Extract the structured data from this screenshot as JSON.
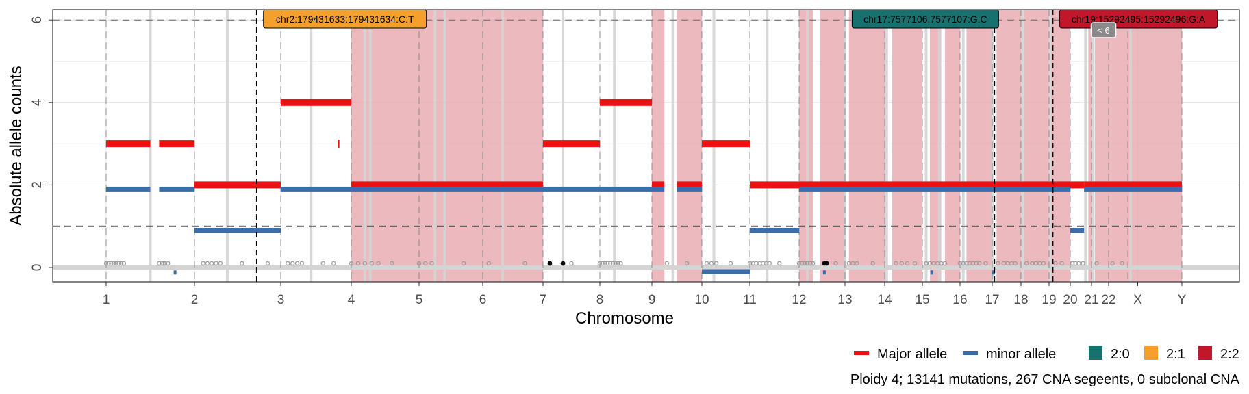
{
  "chart_data": {
    "type": "scatter",
    "title": "",
    "xlabel": "Chromosome",
    "ylabel": "Absolute allele counts",
    "x_tick_labels": [
      "1",
      "2",
      "3",
      "4",
      "5",
      "6",
      "7",
      "8",
      "9",
      "10",
      "11",
      "12",
      "13",
      "14",
      "15",
      "16",
      "17",
      "18",
      "19",
      "20",
      "21",
      "22",
      "X",
      "Y"
    ],
    "y_ticks": [
      0,
      2,
      4,
      6
    ],
    "ylim": [
      -0.35,
      6.3
    ],
    "grid": true,
    "legend_position": "bottom-right",
    "colors": {
      "major": "#ee1111",
      "minor": "#3b6ea8",
      "shade": "#e8aab0",
      "karyo_2_0": "#16716f",
      "karyo_2_1": "#f5a02c",
      "karyo_2_2": "#c0182a",
      "mutation": "#9a9a9a",
      "driver": "#000000"
    },
    "legend": {
      "alleles": [
        {
          "label": "Major allele",
          "color": "#ee1111"
        },
        {
          "label": "minor allele",
          "color": "#3b6ea8"
        }
      ],
      "karyotypes": [
        {
          "label": "2:0",
          "color": "#16716f"
        },
        {
          "label": "2:1",
          "color": "#f5a02c"
        },
        {
          "label": "2:2",
          "color": "#c0182a"
        }
      ]
    },
    "caption": "Ploidy 4; 13141 mutations, 267 CNA segeents, 0 subclonal CNA",
    "reference_line_y": 1,
    "driver_annotations": [
      {
        "label": "chr2:179431633:179431634:C:T",
        "chromosome_pos": 2.72,
        "karyotype": "2:1"
      },
      {
        "label": "chr17:7577106:7577107:G:C",
        "chromosome_pos": 17.08,
        "karyotype": "2:0"
      },
      {
        "label": "chr19:15292495:15292496:G:A",
        "chromosome_pos": 19.18,
        "karyotype": "2:2"
      }
    ],
    "overflow_marker": "< 6",
    "segments": [
      {
        "start": 1.0,
        "end": 1.5,
        "major": 3,
        "minor": 1.9
      },
      {
        "start": 1.6,
        "end": 2.0,
        "major": 3,
        "minor": 1.9
      },
      {
        "start": 2.0,
        "end": 3.0,
        "major": 2,
        "minor": 0.9
      },
      {
        "start": 3.0,
        "end": 4.0,
        "major": 4,
        "minor": 1.9
      },
      {
        "start": 4.0,
        "end": 7.0,
        "major": 2,
        "minor": 1.9
      },
      {
        "start": 7.0,
        "end": 8.0,
        "major": 3,
        "minor": 1.9
      },
      {
        "start": 8.0,
        "end": 9.0,
        "major": 4,
        "minor": 1.9
      },
      {
        "start": 9.0,
        "end": 9.25,
        "major": 2,
        "minor": 1.9
      },
      {
        "start": 9.5,
        "end": 10.0,
        "major": 2,
        "minor": 1.9
      },
      {
        "start": 10.0,
        "end": 11.0,
        "major": 3,
        "minor": -0.1
      },
      {
        "start": 11.0,
        "end": 12.0,
        "major": 2,
        "minor": 0.9
      },
      {
        "start": 12.0,
        "end": 20.0,
        "major": 2,
        "minor": 1.9
      },
      {
        "start": 20.0,
        "end": 20.65,
        "major": 2,
        "minor": 0.9
      },
      {
        "start": 20.65,
        "end": 24.0,
        "major": 2,
        "minor": 1.9
      }
    ],
    "shaded_regions": [
      [
        4.0,
        7.0
      ],
      [
        9.0,
        9.25
      ],
      [
        9.5,
        10.0
      ],
      [
        12.0,
        12.3
      ],
      [
        12.45,
        13.0
      ],
      [
        13.1,
        14.0
      ],
      [
        14.2,
        15.0
      ],
      [
        15.2,
        15.5
      ],
      [
        15.6,
        16.0
      ],
      [
        16.2,
        17.0
      ],
      [
        17.15,
        18.0
      ],
      [
        18.1,
        19.0
      ],
      [
        19.1,
        20.0
      ],
      [
        20.85,
        21.0
      ],
      [
        21.2,
        24.0
      ]
    ],
    "mutation_points_y": 0.1,
    "driver_points_x": [
      7.12,
      7.35,
      12.55,
      12.6
    ]
  }
}
